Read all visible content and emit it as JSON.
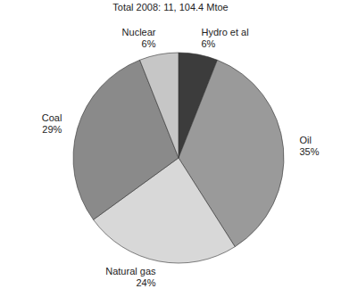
{
  "chart_data": {
    "type": "pie",
    "title": "Total 2008: 11, 104.4 Mtoe",
    "categories": [
      "Hydro et al",
      "Oil",
      "Natural gas",
      "Coal",
      "Nuclear"
    ],
    "values": [
      6,
      35,
      24,
      29,
      6
    ],
    "value_labels": [
      "6%",
      "35%",
      "24%",
      "29%",
      "6%"
    ],
    "colors": [
      "#3c3c3c",
      "#9a9a9a",
      "#d8d8d8",
      "#8a8a8a",
      "#c6c6c6"
    ],
    "data_labels": true
  }
}
